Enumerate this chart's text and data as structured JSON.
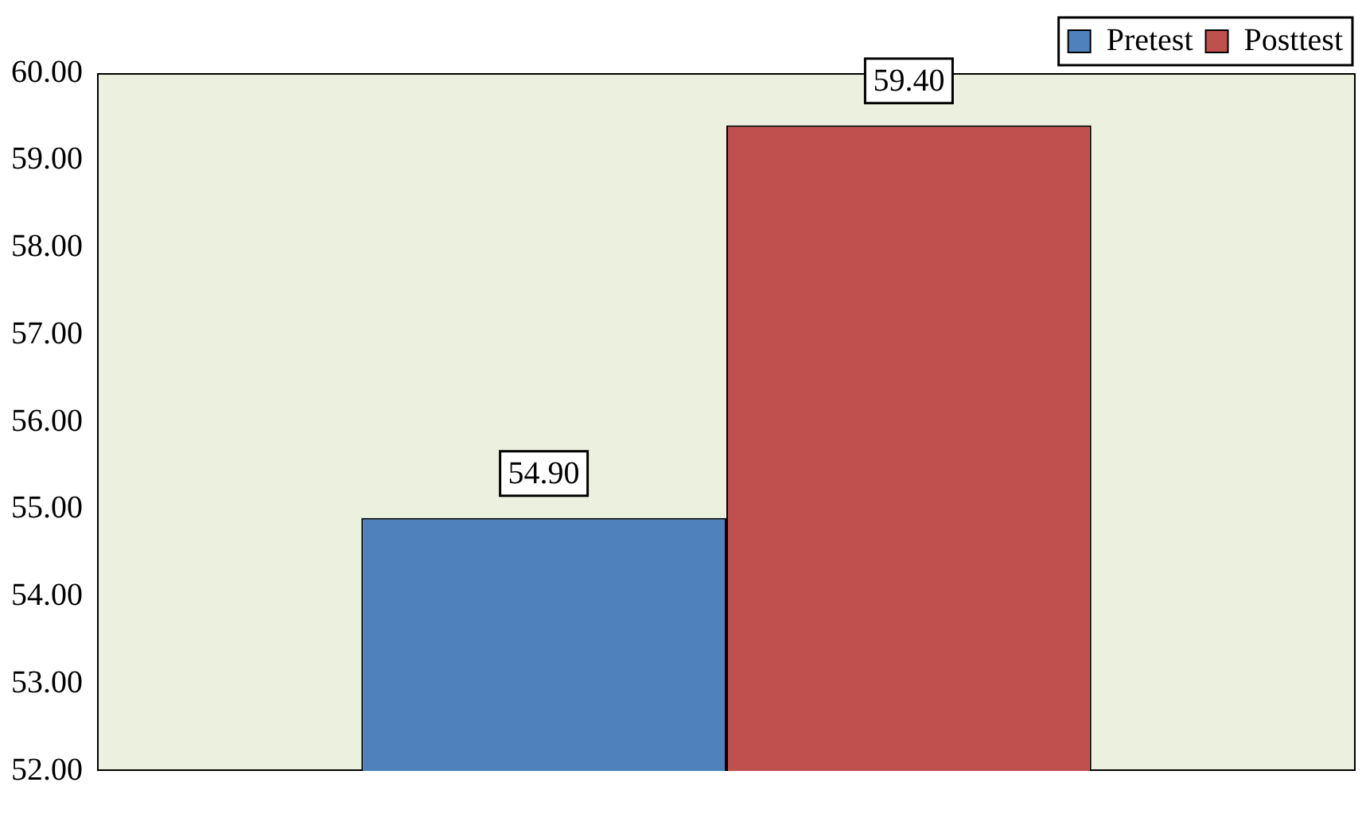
{
  "chart_data": {
    "type": "bar",
    "categories": [
      null
    ],
    "series": [
      {
        "name": "Pretest",
        "color": "#4f81bd",
        "values": [
          54.9
        ],
        "value_labels": [
          "54.90"
        ]
      },
      {
        "name": "Posttest",
        "color": "#c0504d",
        "values": [
          59.4
        ],
        "value_labels": [
          "59.40"
        ]
      }
    ],
    "ylim": [
      52,
      60
    ],
    "yticks": [
      {
        "value": 52,
        "label": "52.00"
      },
      {
        "value": 53,
        "label": "53.00"
      },
      {
        "value": 54,
        "label": "54.00"
      },
      {
        "value": 55,
        "label": "55.00"
      },
      {
        "value": 56,
        "label": "56.00"
      },
      {
        "value": 57,
        "label": "57.00"
      },
      {
        "value": 58,
        "label": "58.00"
      },
      {
        "value": 59,
        "label": "59.00"
      },
      {
        "value": 60,
        "label": "60.00"
      }
    ],
    "grid": false,
    "legend": "top right"
  }
}
